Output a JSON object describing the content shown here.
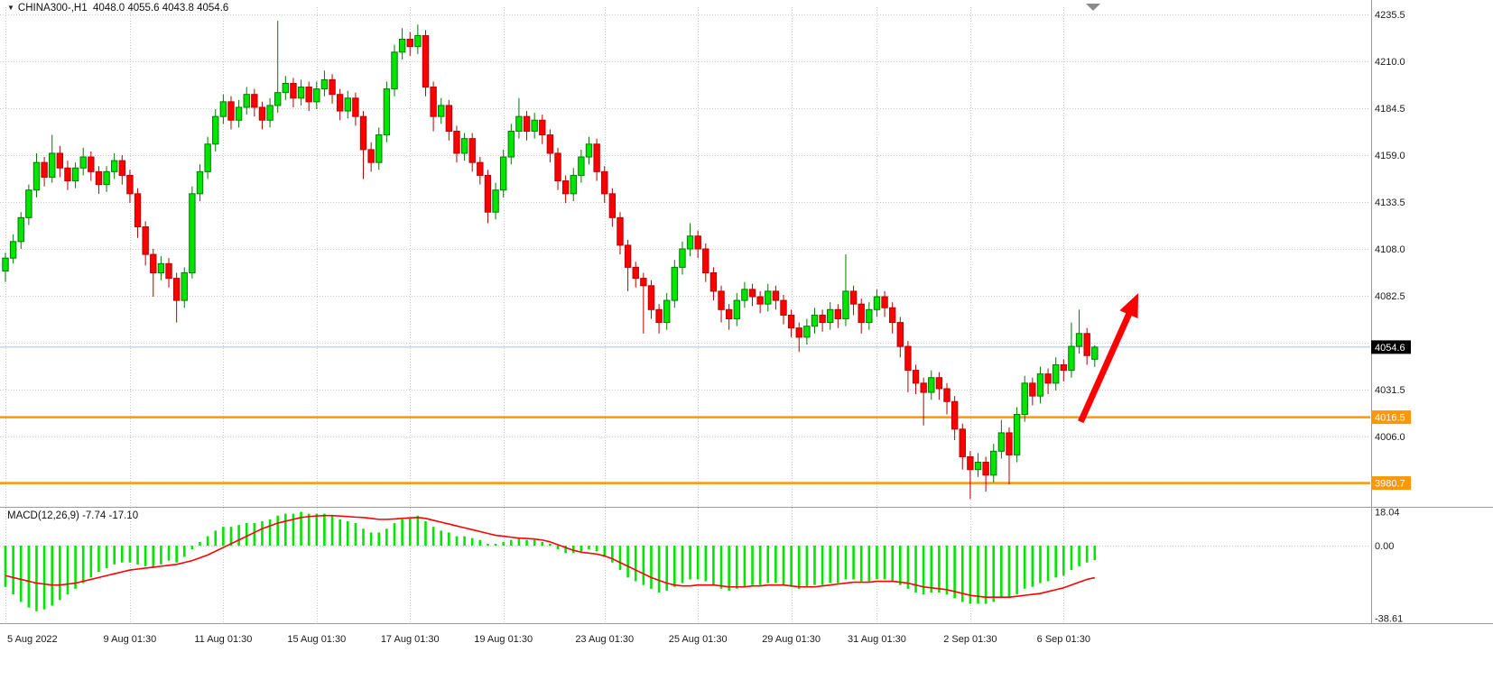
{
  "header": {
    "symbol_dropdown_icon": "▼",
    "symbol_ohlc": "CHINA300-,H1  4048.0 4055.6 4043.8 4054.6"
  },
  "colors": {
    "background": "#ffffff",
    "grid": "#c9c9c9",
    "axis_text": "#1a1a1a",
    "separator": "#9a9a9a",
    "bull_body": "#00e600",
    "bull_border": "#007a00",
    "bear_body": "#ff0000",
    "bear_border": "#b70000",
    "bid_line": "#aac4d4",
    "current_price_bg": "#000000",
    "current_price_text": "#ffffff",
    "level_line": "#ff9800",
    "level_text": "#ffffff",
    "shift_marker": "#8a8a8a"
  },
  "chart_data": [
    {
      "type": "candlestick",
      "symbol": "CHINA300-",
      "timeframe": "H1",
      "last_ohlc": {
        "open": 4048.0,
        "high": 4055.6,
        "low": 4043.8,
        "close": 4054.6
      },
      "current_price": 4054.6,
      "ylim": [
        3968,
        4243
      ],
      "y_ticks": [
        4235.5,
        4210.0,
        4184.5,
        4159.0,
        4133.5,
        4108.0,
        4082.5,
        4031.5,
        4006.0
      ],
      "grid_only_ticks": [
        4057.0,
        3980.5
      ],
      "x_ticks": [
        {
          "index": 0,
          "label": "5 Aug 2022"
        },
        {
          "index": 16,
          "label": "9 Aug 01:30"
        },
        {
          "index": 28,
          "label": "11 Aug 01:30"
        },
        {
          "index": 40,
          "label": "15 Aug 01:30"
        },
        {
          "index": 52,
          "label": "17 Aug 01:30"
        },
        {
          "index": 64,
          "label": "19 Aug 01:30"
        },
        {
          "index": 77,
          "label": "23 Aug 01:30"
        },
        {
          "index": 89,
          "label": "25 Aug 01:30"
        },
        {
          "index": 101,
          "label": "29 Aug 01:30"
        },
        {
          "index": 112,
          "label": "31 Aug 01:30"
        },
        {
          "index": 124,
          "label": "2 Sep 01:30"
        },
        {
          "index": 136,
          "label": "6 Sep 01:30"
        }
      ],
      "levels": [
        {
          "price": 4016.5
        },
        {
          "price": 3980.7
        }
      ],
      "annotation_arrow": {
        "from_index": 138.2,
        "from_price": 4014,
        "to_index": 145.6,
        "to_price": 4084,
        "color": "#ff0000"
      },
      "candles": [
        [
          4096,
          4106,
          4090,
          4103
        ],
        [
          4103,
          4116,
          4100,
          4112
        ],
        [
          4112,
          4128,
          4108,
          4125
        ],
        [
          4125,
          4143,
          4121,
          4140
        ],
        [
          4140,
          4160,
          4136,
          4155
        ],
        [
          4155,
          4158,
          4142,
          4147
        ],
        [
          4147,
          4170,
          4144,
          4160
        ],
        [
          4160,
          4164,
          4147,
          4152
        ],
        [
          4152,
          4156,
          4140,
          4145
        ],
        [
          4145,
          4155,
          4141,
          4152
        ],
        [
          4152,
          4163,
          4148,
          4158
        ],
        [
          4158,
          4161,
          4145,
          4150
        ],
        [
          4150,
          4153,
          4138,
          4143
        ],
        [
          4143,
          4153,
          4139,
          4150
        ],
        [
          4150,
          4160,
          4146,
          4156
        ],
        [
          4156,
          4159,
          4143,
          4148
        ],
        [
          4148,
          4151,
          4133,
          4138
        ],
        [
          4138,
          4141,
          4114,
          4120
        ],
        [
          4120,
          4123,
          4099,
          4105
        ],
        [
          4105,
          4108,
          4082,
          4095
        ],
        [
          4095,
          4104,
          4091,
          4100
        ],
        [
          4100,
          4103,
          4087,
          4092
        ],
        [
          4092,
          4095,
          4068,
          4080
        ],
        [
          4080,
          4098,
          4076,
          4095
        ],
        [
          4095,
          4142,
          4092,
          4138
        ],
        [
          4138,
          4154,
          4134,
          4150
        ],
        [
          4150,
          4169,
          4146,
          4165
        ],
        [
          4165,
          4184,
          4161,
          4180
        ],
        [
          4180,
          4192,
          4176,
          4188
        ],
        [
          4188,
          4191,
          4173,
          4178
        ],
        [
          4178,
          4189,
          4174,
          4185
        ],
        [
          4185,
          4196,
          4181,
          4192
        ],
        [
          4192,
          4195,
          4180,
          4185
        ],
        [
          4185,
          4188,
          4173,
          4178
        ],
        [
          4178,
          4190,
          4174,
          4186
        ],
        [
          4186,
          4232,
          4182,
          4193
        ],
        [
          4193,
          4202,
          4189,
          4198
        ],
        [
          4198,
          4201,
          4185,
          4190
        ],
        [
          4190,
          4200,
          4186,
          4196
        ],
        [
          4196,
          4199,
          4183,
          4188
        ],
        [
          4188,
          4199,
          4184,
          4195
        ],
        [
          4195,
          4205,
          4191,
          4200
        ],
        [
          4200,
          4203,
          4187,
          4192
        ],
        [
          4192,
          4195,
          4178,
          4183
        ],
        [
          4183,
          4194,
          4179,
          4190
        ],
        [
          4190,
          4193,
          4175,
          4180
        ],
        [
          4180,
          4183,
          4146,
          4162
        ],
        [
          4162,
          4166,
          4150,
          4155
        ],
        [
          4155,
          4174,
          4151,
          4170
        ],
        [
          4170,
          4199,
          4166,
          4195
        ],
        [
          4195,
          4219,
          4191,
          4215
        ],
        [
          4215,
          4228,
          4211,
          4222
        ],
        [
          4222,
          4226,
          4213,
          4218
        ],
        [
          4218,
          4230,
          4214,
          4224
        ],
        [
          4224,
          4227,
          4191,
          4196
        ],
        [
          4196,
          4199,
          4172,
          4180
        ],
        [
          4180,
          4190,
          4176,
          4186
        ],
        [
          4186,
          4189,
          4167,
          4172
        ],
        [
          4172,
          4175,
          4155,
          4160
        ],
        [
          4160,
          4171,
          4156,
          4168
        ],
        [
          4168,
          4171,
          4150,
          4155
        ],
        [
          4155,
          4158,
          4143,
          4148
        ],
        [
          4148,
          4151,
          4122,
          4128
        ],
        [
          4128,
          4144,
          4124,
          4140
        ],
        [
          4140,
          4162,
          4136,
          4158
        ],
        [
          4158,
          4176,
          4154,
          4172
        ],
        [
          4172,
          4190,
          4168,
          4180
        ],
        [
          4180,
          4183,
          4167,
          4172
        ],
        [
          4172,
          4182,
          4168,
          4178
        ],
        [
          4178,
          4181,
          4165,
          4170
        ],
        [
          4170,
          4173,
          4155,
          4160
        ],
        [
          4160,
          4163,
          4140,
          4145
        ],
        [
          4145,
          4148,
          4133,
          4138
        ],
        [
          4138,
          4152,
          4134,
          4148
        ],
        [
          4148,
          4162,
          4144,
          4158
        ],
        [
          4158,
          4169,
          4154,
          4165
        ],
        [
          4165,
          4168,
          4145,
          4150
        ],
        [
          4150,
          4153,
          4133,
          4138
        ],
        [
          4138,
          4141,
          4120,
          4125
        ],
        [
          4125,
          4128,
          4105,
          4110
        ],
        [
          4110,
          4113,
          4085,
          4098
        ],
        [
          4098,
          4101,
          4087,
          4092
        ],
        [
          4092,
          4095,
          4062,
          4088
        ],
        [
          4088,
          4091,
          4070,
          4075
        ],
        [
          4075,
          4078,
          4062,
          4068
        ],
        [
          4068,
          4084,
          4064,
          4080
        ],
        [
          4080,
          4102,
          4076,
          4098
        ],
        [
          4098,
          4112,
          4094,
          4108
        ],
        [
          4108,
          4122,
          4104,
          4115
        ],
        [
          4115,
          4118,
          4103,
          4108
        ],
        [
          4108,
          4111,
          4090,
          4095
        ],
        [
          4095,
          4098,
          4080,
          4085
        ],
        [
          4085,
          4088,
          4068,
          4075
        ],
        [
          4075,
          4078,
          4064,
          4070
        ],
        [
          4070,
          4084,
          4066,
          4080
        ],
        [
          4080,
          4090,
          4076,
          4086
        ],
        [
          4086,
          4089,
          4077,
          4082
        ],
        [
          4082,
          4085,
          4073,
          4078
        ],
        [
          4078,
          4089,
          4074,
          4085
        ],
        [
          4085,
          4088,
          4075,
          4080
        ],
        [
          4080,
          4083,
          4067,
          4072
        ],
        [
          4072,
          4075,
          4060,
          4065
        ],
        [
          4065,
          4068,
          4052,
          4060
        ],
        [
          4060,
          4070,
          4056,
          4066
        ],
        [
          4066,
          4076,
          4062,
          4072
        ],
        [
          4072,
          4075,
          4063,
          4068
        ],
        [
          4068,
          4079,
          4064,
          4075
        ],
        [
          4075,
          4078,
          4065,
          4070
        ],
        [
          4070,
          4105,
          4066,
          4085
        ],
        [
          4085,
          4088,
          4072,
          4078
        ],
        [
          4078,
          4081,
          4062,
          4068
        ],
        [
          4068,
          4079,
          4064,
          4075
        ],
        [
          4075,
          4086,
          4071,
          4082
        ],
        [
          4082,
          4085,
          4071,
          4076
        ],
        [
          4076,
          4079,
          4062,
          4068
        ],
        [
          4068,
          4071,
          4049,
          4055
        ],
        [
          4055,
          4058,
          4030,
          4042
        ],
        [
          4042,
          4045,
          4029,
          4035
        ],
        [
          4035,
          4038,
          4012,
          4030
        ],
        [
          4030,
          4042,
          4026,
          4038
        ],
        [
          4038,
          4041,
          4026,
          4032
        ],
        [
          4032,
          4035,
          4018,
          4025
        ],
        [
          4025,
          4028,
          4004,
          4010
        ],
        [
          4010,
          4013,
          3988,
          3995
        ],
        [
          3995,
          3998,
          3972,
          3988
        ],
        [
          3988,
          3997,
          3984,
          3992
        ],
        [
          3992,
          3995,
          3976,
          3985
        ],
        [
          3985,
          4002,
          3981,
          3998
        ],
        [
          3998,
          4015,
          3994,
          4008
        ],
        [
          4008,
          4011,
          3980,
          3996
        ],
        [
          3996,
          4022,
          3992,
          4018
        ],
        [
          4018,
          4039,
          4014,
          4035
        ],
        [
          4035,
          4038,
          4023,
          4028
        ],
        [
          4028,
          4044,
          4024,
          4040
        ],
        [
          4040,
          4043,
          4029,
          4035
        ],
        [
          4035,
          4049,
          4031,
          4045
        ],
        [
          4045,
          4048,
          4036,
          4042
        ],
        [
          4042,
          4068,
          4038,
          4055
        ],
        [
          4055,
          4075,
          4051,
          4062
        ],
        [
          4062,
          4065,
          4045,
          4050
        ],
        [
          4048,
          4055.6,
          4043.8,
          4054.6
        ]
      ]
    },
    {
      "type": "macd",
      "label": "MACD(12,26,9) -7.74 -17.10",
      "params": [
        12,
        26,
        9
      ],
      "current_values": {
        "macd": -7.74,
        "signal": -17.1
      },
      "y_ticks": [
        18.04,
        0,
        -38.61
      ],
      "ylim": [
        -41,
        20
      ],
      "colors": {
        "histogram": "#00e600",
        "signal": "#ff0000"
      },
      "histogram": [
        -22,
        -26,
        -30,
        -33,
        -35,
        -34,
        -32,
        -29,
        -26,
        -23,
        -20,
        -17,
        -14,
        -12,
        -10,
        -9,
        -9,
        -10,
        -11,
        -12,
        -10,
        -8,
        -9,
        -6,
        -2,
        2,
        5,
        8,
        10,
        10,
        11,
        12,
        12,
        13,
        14,
        16,
        17,
        17,
        18,
        17,
        17,
        17,
        16,
        14,
        13,
        12,
        9,
        7,
        7,
        9,
        12,
        14,
        15,
        16,
        13,
        10,
        8,
        7,
        5,
        5,
        4,
        3,
        1,
        1,
        2,
        3,
        4,
        3,
        3,
        2,
        1,
        -2,
        -4,
        -4,
        -3,
        -2,
        -3,
        -6,
        -9,
        -13,
        -17,
        -19,
        -21,
        -23,
        -25,
        -24,
        -22,
        -20,
        -18,
        -18,
        -19,
        -21,
        -23,
        -24,
        -23,
        -22,
        -21,
        -21,
        -20,
        -20,
        -21,
        -22,
        -23,
        -22,
        -21,
        -21,
        -20,
        -20,
        -18,
        -18,
        -19,
        -19,
        -18,
        -18,
        -19,
        -21,
        -23,
        -25,
        -26,
        -25,
        -25,
        -26,
        -28,
        -30,
        -31,
        -31,
        -31,
        -30,
        -28,
        -28,
        -26,
        -23,
        -22,
        -20,
        -19,
        -17,
        -16,
        -13,
        -11,
        -9,
        -7.74
      ],
      "signal_line": [
        -16,
        -17,
        -18,
        -19,
        -20,
        -20.5,
        -21,
        -21,
        -20.5,
        -20,
        -19,
        -18,
        -17,
        -16,
        -15,
        -14,
        -13,
        -12.5,
        -12,
        -11.5,
        -11,
        -10.5,
        -10,
        -9,
        -8,
        -6.5,
        -5,
        -3,
        -1,
        1,
        3,
        5,
        7,
        9,
        10.5,
        12,
        13,
        14,
        15,
        15.5,
        15.8,
        16,
        16,
        15.8,
        15.5,
        15.2,
        15,
        14.5,
        14,
        14,
        14.2,
        14.5,
        14.8,
        15,
        14.5,
        13.5,
        12.5,
        11.5,
        10.5,
        9.5,
        8.5,
        7.5,
        6.5,
        5.5,
        5,
        4.5,
        4,
        3.8,
        3.5,
        3,
        2,
        0.5,
        -1,
        -2.5,
        -3.5,
        -4,
        -4.5,
        -5.5,
        -7,
        -9,
        -11,
        -13,
        -15,
        -17,
        -18.5,
        -20,
        -21,
        -21.5,
        -21.5,
        -21,
        -21,
        -21,
        -21.5,
        -22,
        -22,
        -22,
        -21.5,
        -21.5,
        -21,
        -21,
        -21,
        -21.5,
        -22,
        -22,
        -22,
        -21.5,
        -21,
        -20.5,
        -20,
        -19.5,
        -19.5,
        -19.5,
        -19,
        -19,
        -19,
        -19.5,
        -20,
        -21,
        -22,
        -22.5,
        -23,
        -23.5,
        -24.5,
        -25.5,
        -26.5,
        -27,
        -27.5,
        -27.5,
        -27.5,
        -27.5,
        -27,
        -26.5,
        -26,
        -25.5,
        -24.5,
        -23.5,
        -22.5,
        -21,
        -19.5,
        -18,
        -17.1
      ]
    }
  ]
}
